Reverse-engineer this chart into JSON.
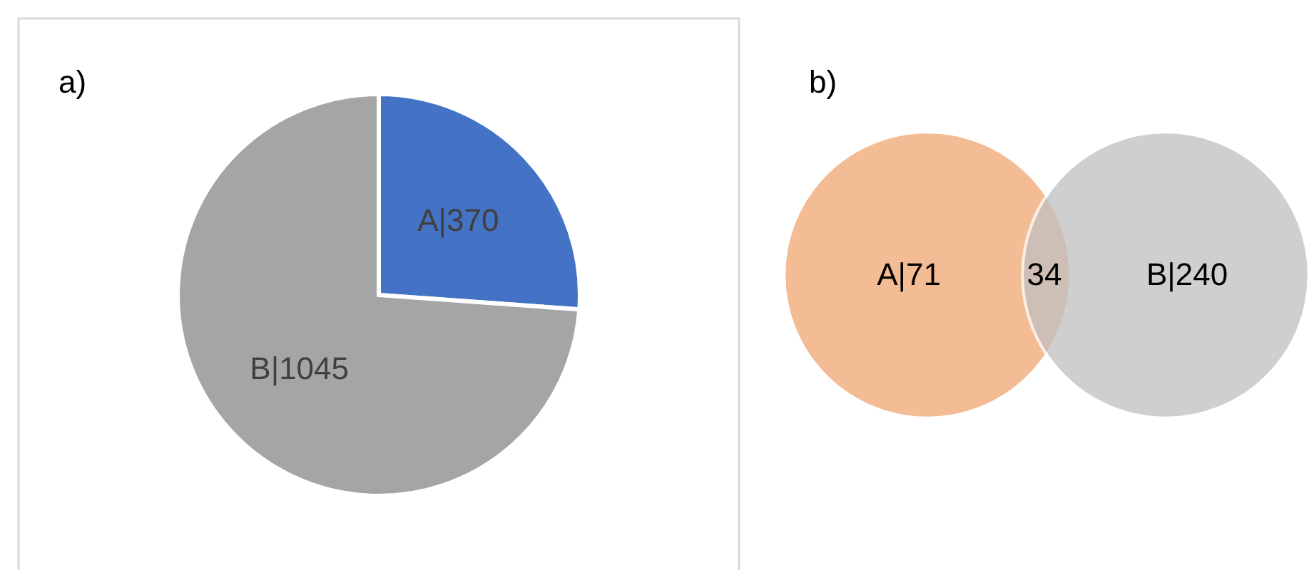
{
  "chart_data": [
    {
      "type": "pie",
      "title": "a)",
      "categories": [
        null,
        null
      ],
      "values": [
        370,
        1045
      ],
      "colors": [
        "#4472c4",
        "#a5a5a5"
      ],
      "value_labels": [
        "A|370",
        "B|1045"
      ]
    },
    {
      "type": "other",
      "title": "b)",
      "categories": [
        null,
        null
      ],
      "values": [
        71,
        240
      ],
      "colors": [
        "#f4bc94",
        "#c0c0c0"
      ],
      "value_labels": [
        "A|71",
        "B|240"
      ],
      "annotations": [
        "34"
      ]
    }
  ]
}
